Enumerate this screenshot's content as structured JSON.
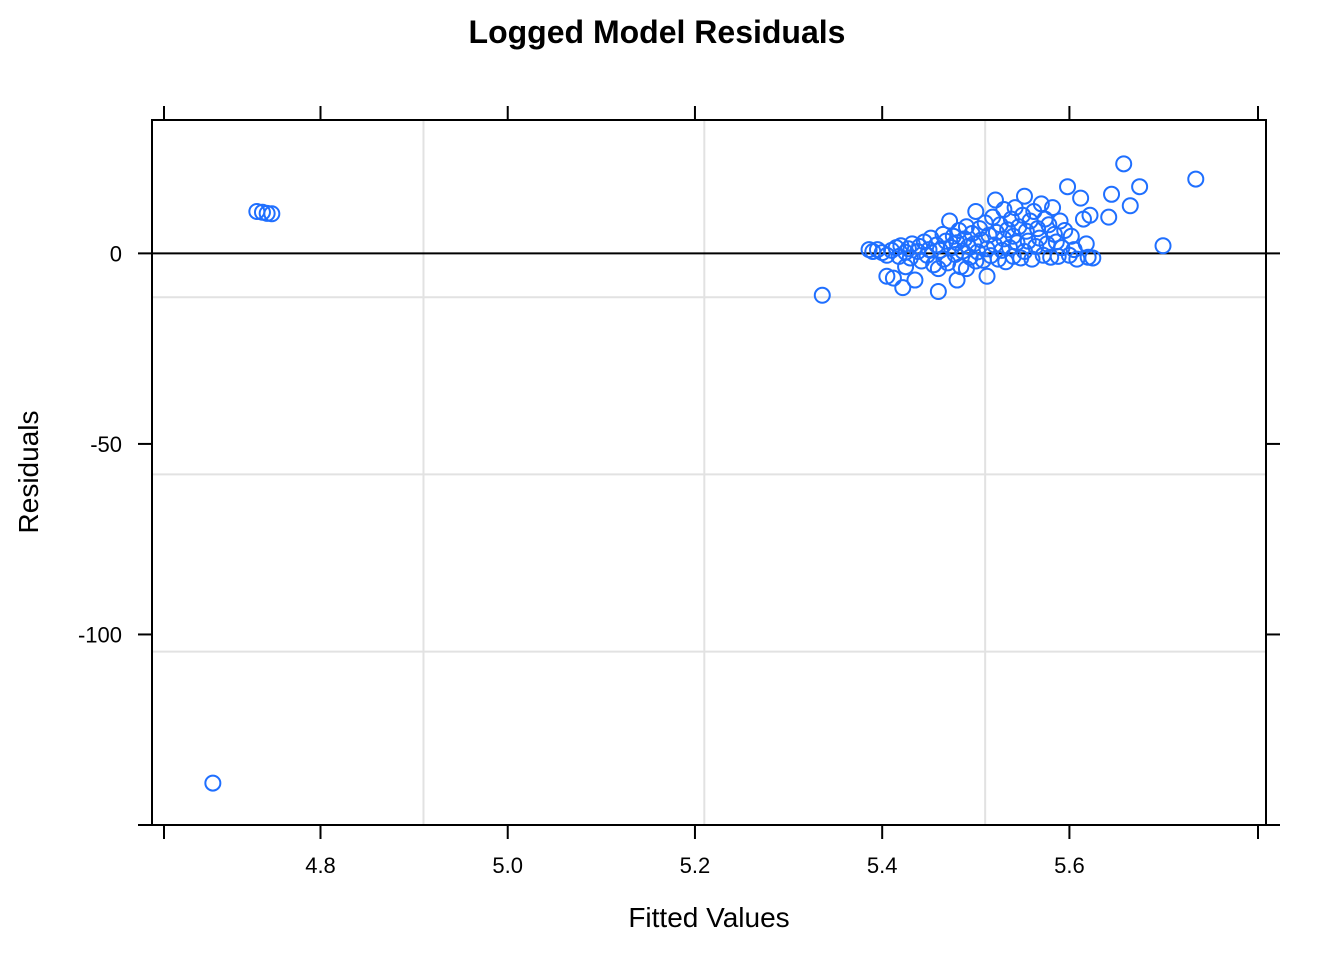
{
  "chart_data": {
    "type": "scatter",
    "title": "Logged Model Residuals",
    "xlabel": "Fitted Values",
    "ylabel": "Residuals",
    "xlim": [
      4.62,
      5.81
    ],
    "ylim": [
      -150,
      35
    ],
    "xticks": [
      4.8,
      5.0,
      5.2,
      5.4,
      5.6
    ],
    "xtick_labels": [
      "4.8",
      "5.0",
      "5.2",
      "5.4",
      "5.6"
    ],
    "yticks": [
      0,
      -50,
      -100
    ],
    "ytick_labels": [
      "0",
      "-50",
      "-100"
    ],
    "grid_x": [
      4.91,
      5.21,
      5.51
    ],
    "grid_y": [
      -11.5,
      -58,
      -104.5
    ],
    "reference_line_y": 0,
    "point_color": "#1f6fff",
    "points": [
      {
        "x": 4.685,
        "y": -139
      },
      {
        "x": 4.732,
        "y": 11
      },
      {
        "x": 4.738,
        "y": 10.8
      },
      {
        "x": 4.743,
        "y": 10.5
      },
      {
        "x": 4.748,
        "y": 10.4
      },
      {
        "x": 5.336,
        "y": -11
      },
      {
        "x": 5.386,
        "y": 1
      },
      {
        "x": 5.39,
        "y": 0.5
      },
      {
        "x": 5.395,
        "y": 1
      },
      {
        "x": 5.4,
        "y": 0.2
      },
      {
        "x": 5.405,
        "y": -0.5
      },
      {
        "x": 5.405,
        "y": -6
      },
      {
        "x": 5.41,
        "y": 0.8
      },
      {
        "x": 5.412,
        "y": -6.5
      },
      {
        "x": 5.415,
        "y": 1.5
      },
      {
        "x": 5.418,
        "y": -0.8
      },
      {
        "x": 5.42,
        "y": 2
      },
      {
        "x": 5.422,
        "y": -9
      },
      {
        "x": 5.425,
        "y": 0.3
      },
      {
        "x": 5.425,
        "y": -3.5
      },
      {
        "x": 5.428,
        "y": 1.2
      },
      {
        "x": 5.43,
        "y": -1.2
      },
      {
        "x": 5.432,
        "y": 2.5
      },
      {
        "x": 5.435,
        "y": -7
      },
      {
        "x": 5.438,
        "y": 0.5
      },
      {
        "x": 5.44,
        "y": 1.8
      },
      {
        "x": 5.442,
        "y": -2
      },
      {
        "x": 5.445,
        "y": 3
      },
      {
        "x": 5.448,
        "y": -0.5
      },
      {
        "x": 5.45,
        "y": 1
      },
      {
        "x": 5.452,
        "y": 4
      },
      {
        "x": 5.455,
        "y": -3
      },
      {
        "x": 5.458,
        "y": 2.2
      },
      {
        "x": 5.46,
        "y": -10
      },
      {
        "x": 5.46,
        "y": -4
      },
      {
        "x": 5.462,
        "y": 0.8
      },
      {
        "x": 5.465,
        "y": 5
      },
      {
        "x": 5.466,
        "y": -1.5
      },
      {
        "x": 5.468,
        "y": 3.2
      },
      {
        "x": 5.47,
        "y": -2.5
      },
      {
        "x": 5.472,
        "y": 8.5
      },
      {
        "x": 5.474,
        "y": 1.5
      },
      {
        "x": 5.476,
        "y": 4.5
      },
      {
        "x": 5.478,
        "y": -0.3
      },
      {
        "x": 5.48,
        "y": -7
      },
      {
        "x": 5.48,
        "y": 2.8
      },
      {
        "x": 5.482,
        "y": 6
      },
      {
        "x": 5.484,
        "y": -3.5
      },
      {
        "x": 5.486,
        "y": 0.6
      },
      {
        "x": 5.488,
        "y": 3.8
      },
      {
        "x": 5.49,
        "y": -4
      },
      {
        "x": 5.49,
        "y": 7
      },
      {
        "x": 5.492,
        "y": 1.8
      },
      {
        "x": 5.494,
        "y": -1
      },
      {
        "x": 5.496,
        "y": 5.2
      },
      {
        "x": 5.498,
        "y": 2.5
      },
      {
        "x": 5.5,
        "y": 11
      },
      {
        "x": 5.5,
        "y": -2
      },
      {
        "x": 5.502,
        "y": 0.4
      },
      {
        "x": 5.504,
        "y": 6.5
      },
      {
        "x": 5.506,
        "y": 3.5
      },
      {
        "x": 5.508,
        "y": -1.8
      },
      {
        "x": 5.51,
        "y": 8
      },
      {
        "x": 5.512,
        "y": -6
      },
      {
        "x": 5.512,
        "y": 1.2
      },
      {
        "x": 5.514,
        "y": 4.8
      },
      {
        "x": 5.516,
        "y": -0.6
      },
      {
        "x": 5.518,
        "y": 9.5
      },
      {
        "x": 5.52,
        "y": 2.2
      },
      {
        "x": 5.521,
        "y": 14
      },
      {
        "x": 5.522,
        "y": 5.5
      },
      {
        "x": 5.524,
        "y": -1.5
      },
      {
        "x": 5.526,
        "y": 7.5
      },
      {
        "x": 5.528,
        "y": 0.8
      },
      {
        "x": 5.53,
        "y": 11.5
      },
      {
        "x": 5.53,
        "y": 3.8
      },
      {
        "x": 5.532,
        "y": -2.2
      },
      {
        "x": 5.534,
        "y": 6.2
      },
      {
        "x": 5.536,
        "y": 1.5
      },
      {
        "x": 5.538,
        "y": 9
      },
      {
        "x": 5.54,
        "y": -0.8
      },
      {
        "x": 5.54,
        "y": 4.5
      },
      {
        "x": 5.542,
        "y": 12
      },
      {
        "x": 5.544,
        "y": 2.8
      },
      {
        "x": 5.546,
        "y": 7
      },
      {
        "x": 5.548,
        "y": -1.2
      },
      {
        "x": 5.55,
        "y": 10
      },
      {
        "x": 5.552,
        "y": 15
      },
      {
        "x": 5.552,
        "y": 0.5
      },
      {
        "x": 5.554,
        "y": 5.8
      },
      {
        "x": 5.556,
        "y": 3.2
      },
      {
        "x": 5.558,
        "y": 8.5
      },
      {
        "x": 5.56,
        "y": -1.5
      },
      {
        "x": 5.562,
        "y": 11
      },
      {
        "x": 5.564,
        "y": 1.8
      },
      {
        "x": 5.566,
        "y": 6.5
      },
      {
        "x": 5.568,
        "y": 4
      },
      {
        "x": 5.57,
        "y": 13
      },
      {
        "x": 5.572,
        "y": -0.5
      },
      {
        "x": 5.574,
        "y": 9
      },
      {
        "x": 5.576,
        "y": 2.5
      },
      {
        "x": 5.578,
        "y": 7.5
      },
      {
        "x": 5.58,
        "y": -1
      },
      {
        "x": 5.582,
        "y": 12
      },
      {
        "x": 5.584,
        "y": 5
      },
      {
        "x": 5.586,
        "y": 3
      },
      {
        "x": 5.588,
        "y": -0.8
      },
      {
        "x": 5.59,
        "y": 8.5
      },
      {
        "x": 5.592,
        "y": 1.5
      },
      {
        "x": 5.595,
        "y": 6
      },
      {
        "x": 5.598,
        "y": 17.5
      },
      {
        "x": 5.6,
        "y": -0.5
      },
      {
        "x": 5.602,
        "y": 4.5
      },
      {
        "x": 5.605,
        "y": 1
      },
      {
        "x": 5.608,
        "y": -1.5
      },
      {
        "x": 5.612,
        "y": 14.5
      },
      {
        "x": 5.615,
        "y": 9
      },
      {
        "x": 5.618,
        "y": 2.5
      },
      {
        "x": 5.62,
        "y": -1
      },
      {
        "x": 5.622,
        "y": 10
      },
      {
        "x": 5.625,
        "y": -1.2
      },
      {
        "x": 5.642,
        "y": 9.5
      },
      {
        "x": 5.645,
        "y": 15.5
      },
      {
        "x": 5.658,
        "y": 23.5
      },
      {
        "x": 5.665,
        "y": 12.5
      },
      {
        "x": 5.675,
        "y": 17.5
      },
      {
        "x": 5.7,
        "y": 2
      },
      {
        "x": 5.735,
        "y": 19.5
      }
    ]
  }
}
